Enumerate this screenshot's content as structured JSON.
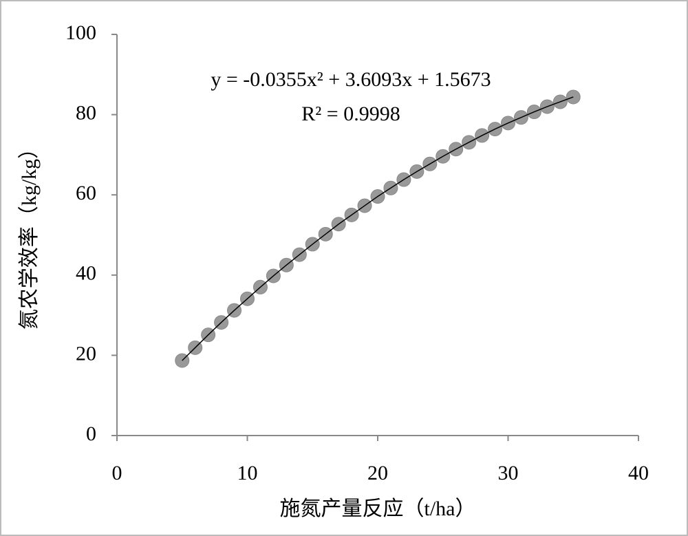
{
  "chart_data": {
    "type": "scatter",
    "x_label": "施氮产量反应（t/ha）",
    "y_label": "氮农学效率（kg/kg）",
    "annotations": [
      "y = -0.0355x² + 3.6093x + 1.5673",
      "R² = 0.9998"
    ],
    "x": [
      5,
      6,
      7,
      8,
      9,
      10,
      11,
      12,
      13,
      14,
      15,
      16,
      17,
      18,
      19,
      20,
      21,
      22,
      23,
      24,
      25,
      26,
      27,
      28,
      29,
      30,
      31,
      32,
      33,
      34,
      35
    ],
    "series": [
      {
        "color": "#999999",
        "values": [
          18.7,
          21.9,
          25.1,
          28.2,
          31.2,
          34.1,
          37.0,
          39.8,
          42.5,
          45.1,
          47.7,
          50.2,
          52.7,
          55.0,
          57.3,
          59.6,
          61.7,
          63.8,
          65.8,
          67.7,
          69.6,
          71.4,
          73.1,
          74.8,
          76.4,
          77.9,
          79.3,
          80.7,
          82.0,
          83.2,
          84.4
        ]
      }
    ],
    "trendline_color": "#000000",
    "xlim": [
      0,
      40
    ],
    "xticks": [
      0,
      10,
      20,
      30,
      40
    ],
    "ylim": [
      0,
      100
    ],
    "yticks": [
      0,
      20,
      40,
      60,
      80,
      100
    ]
  }
}
